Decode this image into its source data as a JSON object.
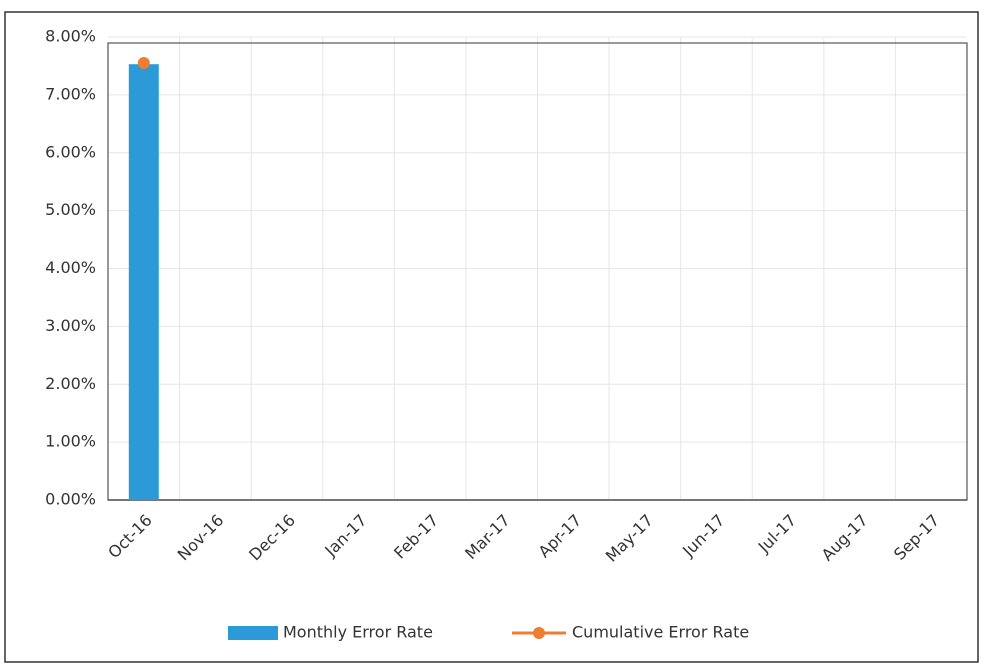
{
  "chart_data": {
    "type": "bar_line",
    "categories": [
      "Oct-16",
      "Nov-16",
      "Dec-16",
      "Jan-17",
      "Feb-17",
      "Mar-17",
      "Apr-17",
      "May-17",
      "Jun-17",
      "Jul-17",
      "Aug-17",
      "Sep-17"
    ],
    "series": [
      {
        "name": "Monthly Error Rate",
        "type": "bar",
        "color": "#2b9ad6",
        "values": [
          7.53,
          null,
          null,
          null,
          null,
          null,
          null,
          null,
          null,
          null,
          null,
          null
        ]
      },
      {
        "name": "Cumulative Error Rate",
        "type": "line",
        "color": "#ed7d31",
        "values": [
          7.55,
          null,
          null,
          null,
          null,
          null,
          null,
          null,
          null,
          null,
          null,
          null
        ]
      }
    ],
    "ylim": [
      0,
      8
    ],
    "yticks": [
      {
        "value": 0,
        "label": "0.00%"
      },
      {
        "value": 1,
        "label": "1.00%"
      },
      {
        "value": 2,
        "label": "2.00%"
      },
      {
        "value": 3,
        "label": "3.00%"
      },
      {
        "value": 4,
        "label": "4.00%"
      },
      {
        "value": 5,
        "label": "5.00%"
      },
      {
        "value": 6,
        "label": "6.00%"
      },
      {
        "value": 7,
        "label": "7.00%"
      },
      {
        "value": 8,
        "label": "8.00%"
      }
    ],
    "grid": true,
    "legend": "bottom"
  }
}
